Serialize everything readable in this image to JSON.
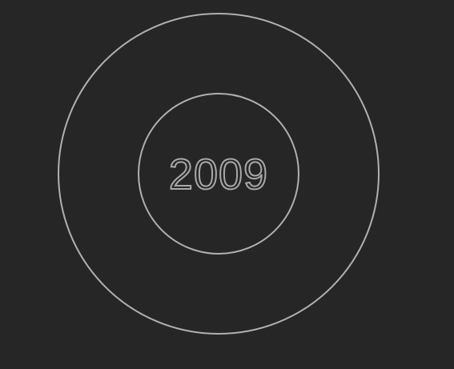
{
  "dial": {
    "year_label": "2009"
  },
  "colors": {
    "background": "#262626",
    "ring_stroke": "#b0b0b0",
    "text_outline": "#a9a9a9"
  }
}
